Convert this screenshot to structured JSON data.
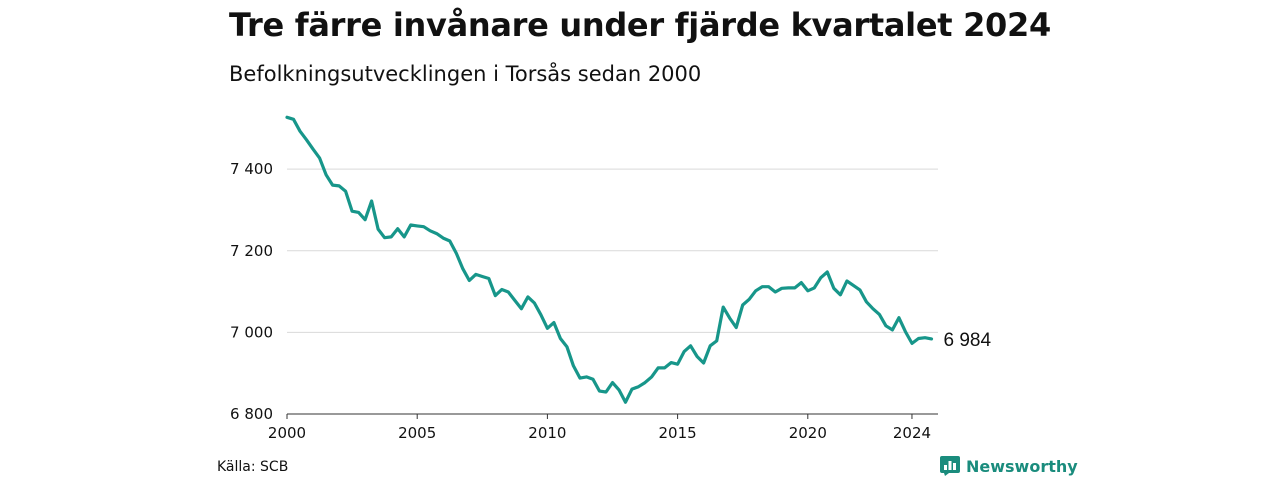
{
  "header": {
    "title": "Tre färre invånare under fjärde kvartalet 2024",
    "subtitle": "Befolkningsutvecklingen i Torsås sedan 2000"
  },
  "footer": {
    "source": "Källa: SCB",
    "brand": "Newsworthy",
    "brand_icon": "bar-chart-icon"
  },
  "colors": {
    "line": "#17968a",
    "grid": "#d9d9d9",
    "brand": "#1a8c7d"
  },
  "chart_data": {
    "type": "line",
    "title": "Tre färre invånare under fjärde kvartalet 2024",
    "subtitle": "Befolkningsutvecklingen i Torsås sedan 2000",
    "xlabel": "",
    "ylabel": "",
    "x_ticks": [
      2000,
      2005,
      2010,
      2015,
      2020,
      2024
    ],
    "y_ticks": [
      6800,
      7000,
      7200,
      7400
    ],
    "y_tick_labels": [
      "6 800",
      "7 000",
      "7 200",
      "7 400"
    ],
    "xlim": [
      2000,
      2025
    ],
    "ylim": [
      6800,
      7540
    ],
    "grid": "horizontal",
    "legend": "none",
    "end_label": "6 984",
    "series": [
      {
        "values": [
          {
            "x": "2000Q1",
            "y": 7527
          },
          {
            "x": "2000Q2",
            "y": 7522
          },
          {
            "x": "2000Q3",
            "y": 7493
          },
          {
            "x": "2000Q4",
            "y": 7472
          },
          {
            "x": "2001Q1",
            "y": 7449
          },
          {
            "x": "2001Q2",
            "y": 7427
          },
          {
            "x": "2001Q3",
            "y": 7386
          },
          {
            "x": "2001Q4",
            "y": 7361
          },
          {
            "x": "2002Q1",
            "y": 7359
          },
          {
            "x": "2002Q2",
            "y": 7346
          },
          {
            "x": "2002Q3",
            "y": 7297
          },
          {
            "x": "2002Q4",
            "y": 7294
          },
          {
            "x": "2003Q1",
            "y": 7276
          },
          {
            "x": "2003Q2",
            "y": 7322
          },
          {
            "x": "2003Q3",
            "y": 7253
          },
          {
            "x": "2003Q4",
            "y": 7232
          },
          {
            "x": "2004Q1",
            "y": 7234
          },
          {
            "x": "2004Q2",
            "y": 7254
          },
          {
            "x": "2004Q3",
            "y": 7234
          },
          {
            "x": "2004Q4",
            "y": 7263
          },
          {
            "x": "2005Q1",
            "y": 7261
          },
          {
            "x": "2005Q2",
            "y": 7259
          },
          {
            "x": "2005Q3",
            "y": 7249
          },
          {
            "x": "2005Q4",
            "y": 7242
          },
          {
            "x": "2006Q1",
            "y": 7231
          },
          {
            "x": "2006Q2",
            "y": 7224
          },
          {
            "x": "2006Q3",
            "y": 7194
          },
          {
            "x": "2006Q4",
            "y": 7156
          },
          {
            "x": "2007Q1",
            "y": 7127
          },
          {
            "x": "2007Q2",
            "y": 7142
          },
          {
            "x": "2007Q3",
            "y": 7137
          },
          {
            "x": "2007Q4",
            "y": 7132
          },
          {
            "x": "2008Q1",
            "y": 7090
          },
          {
            "x": "2008Q2",
            "y": 7105
          },
          {
            "x": "2008Q3",
            "y": 7099
          },
          {
            "x": "2008Q4",
            "y": 7078
          },
          {
            "x": "2009Q1",
            "y": 7058
          },
          {
            "x": "2009Q2",
            "y": 7087
          },
          {
            "x": "2009Q3",
            "y": 7072
          },
          {
            "x": "2009Q4",
            "y": 7043
          },
          {
            "x": "2010Q1",
            "y": 7010
          },
          {
            "x": "2010Q2",
            "y": 7024
          },
          {
            "x": "2010Q3",
            "y": 6985
          },
          {
            "x": "2010Q4",
            "y": 6965
          },
          {
            "x": "2011Q1",
            "y": 6918
          },
          {
            "x": "2011Q2",
            "y": 6888
          },
          {
            "x": "2011Q3",
            "y": 6891
          },
          {
            "x": "2011Q4",
            "y": 6885
          },
          {
            "x": "2012Q1",
            "y": 6856
          },
          {
            "x": "2012Q2",
            "y": 6854
          },
          {
            "x": "2012Q3",
            "y": 6877
          },
          {
            "x": "2012Q4",
            "y": 6859
          },
          {
            "x": "2013Q1",
            "y": 6829
          },
          {
            "x": "2013Q2",
            "y": 6861
          },
          {
            "x": "2013Q3",
            "y": 6867
          },
          {
            "x": "2013Q4",
            "y": 6877
          },
          {
            "x": "2014Q1",
            "y": 6891
          },
          {
            "x": "2014Q2",
            "y": 6913
          },
          {
            "x": "2014Q3",
            "y": 6913
          },
          {
            "x": "2014Q4",
            "y": 6926
          },
          {
            "x": "2015Q1",
            "y": 6922
          },
          {
            "x": "2015Q2",
            "y": 6953
          },
          {
            "x": "2015Q3",
            "y": 6967
          },
          {
            "x": "2015Q4",
            "y": 6941
          },
          {
            "x": "2016Q1",
            "y": 6925
          },
          {
            "x": "2016Q2",
            "y": 6967
          },
          {
            "x": "2016Q3",
            "y": 6979
          },
          {
            "x": "2016Q4",
            "y": 7062
          },
          {
            "x": "2017Q1",
            "y": 7035
          },
          {
            "x": "2017Q2",
            "y": 7012
          },
          {
            "x": "2017Q3",
            "y": 7067
          },
          {
            "x": "2017Q4",
            "y": 7081
          },
          {
            "x": "2018Q1",
            "y": 7102
          },
          {
            "x": "2018Q2",
            "y": 7112
          },
          {
            "x": "2018Q3",
            "y": 7112
          },
          {
            "x": "2018Q4",
            "y": 7099
          },
          {
            "x": "2019Q1",
            "y": 7108
          },
          {
            "x": "2019Q2",
            "y": 7109
          },
          {
            "x": "2019Q3",
            "y": 7109
          },
          {
            "x": "2019Q4",
            "y": 7122
          },
          {
            "x": "2020Q1",
            "y": 7102
          },
          {
            "x": "2020Q2",
            "y": 7109
          },
          {
            "x": "2020Q3",
            "y": 7134
          },
          {
            "x": "2020Q4",
            "y": 7148
          },
          {
            "x": "2021Q1",
            "y": 7108
          },
          {
            "x": "2021Q2",
            "y": 7092
          },
          {
            "x": "2021Q3",
            "y": 7126
          },
          {
            "x": "2021Q4",
            "y": 7115
          },
          {
            "x": "2022Q1",
            "y": 7104
          },
          {
            "x": "2022Q2",
            "y": 7075
          },
          {
            "x": "2022Q3",
            "y": 7058
          },
          {
            "x": "2022Q4",
            "y": 7044
          },
          {
            "x": "2023Q1",
            "y": 7016
          },
          {
            "x": "2023Q2",
            "y": 7006
          },
          {
            "x": "2023Q3",
            "y": 7036
          },
          {
            "x": "2023Q4",
            "y": 7002
          },
          {
            "x": "2024Q1",
            "y": 6973
          },
          {
            "x": "2024Q2",
            "y": 6985
          },
          {
            "x": "2024Q3",
            "y": 6987
          },
          {
            "x": "2024Q4",
            "y": 6984
          }
        ]
      }
    ]
  }
}
